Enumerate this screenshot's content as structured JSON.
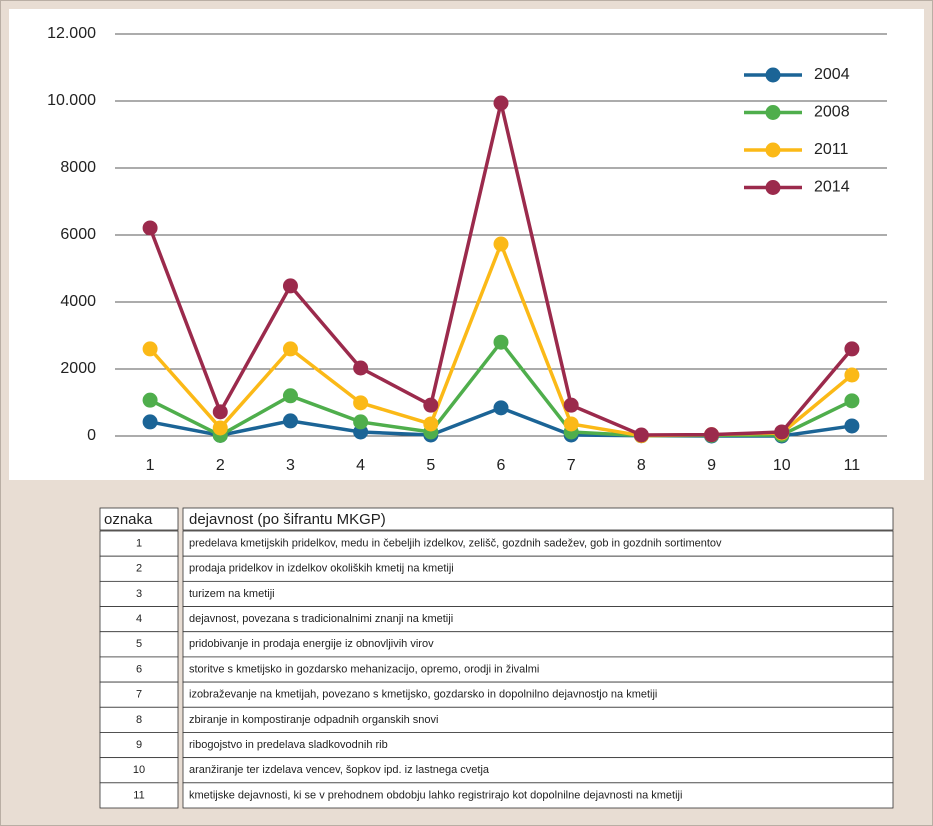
{
  "chart_data": {
    "type": "line",
    "categories": [
      "1",
      "2",
      "3",
      "4",
      "5",
      "6",
      "7",
      "8",
      "9",
      "10",
      "11"
    ],
    "series": [
      {
        "name": "2004",
        "color": "#1b6496",
        "values": [
          420,
          20,
          450,
          120,
          30,
          840,
          30,
          10,
          0,
          0,
          300
        ]
      },
      {
        "name": "2008",
        "color": "#4fae4c",
        "values": [
          1070,
          20,
          1200,
          420,
          120,
          2800,
          120,
          10,
          20,
          30,
          1050
        ]
      },
      {
        "name": "2011",
        "color": "#fbb917",
        "values": [
          2600,
          240,
          2600,
          990,
          360,
          5730,
          360,
          10,
          40,
          90,
          1820
        ]
      },
      {
        "name": "2014",
        "color": "#9b2a4c",
        "values": [
          6210,
          720,
          4480,
          2030,
          920,
          9940,
          920,
          30,
          40,
          120,
          2600
        ]
      }
    ],
    "ylim": [
      0,
      12000
    ],
    "yticks": [
      0,
      2000,
      4000,
      6000,
      8000,
      {
        "value": 10000,
        "label": "10.000"
      },
      {
        "value": 12000,
        "label": "12.000"
      }
    ],
    "grid": true,
    "legend": "upper right"
  },
  "table": {
    "header": [
      "oznaka",
      "dejavnost (po šifrantu MKGP)"
    ],
    "rows": [
      [
        "1",
        "predelava kmetijskih pridelkov, medu in čebeljih izdelkov, zelišč, gozdnih sadežev, gob in gozdnih sortimentov"
      ],
      [
        "2",
        "prodaja pridelkov in izdelkov okoliških kmetij na kmetiji"
      ],
      [
        "3",
        "turizem na kmetiji"
      ],
      [
        "4",
        "dejavnost, povezana s tradicionalnimi znanji na kmetiji"
      ],
      [
        "5",
        "pridobivanje in prodaja energije iz obnovljivih virov"
      ],
      [
        "6",
        "storitve s kmetijsko in gozdarsko mehanizacijo, opremo, orodji in živalmi"
      ],
      [
        "7",
        "izobraževanje na kmetijah, povezano s kmetijsko, gozdarsko in dopolnilno dejavnostjo na kmetiji"
      ],
      [
        "8",
        "zbiranje in kompostiranje odpadnih organskih snovi"
      ],
      [
        "9",
        "ribogojstvo in predelava sladkovodnih rib"
      ],
      [
        "10",
        "aranžiranje ter izdelava vencev, šopkov ipd. iz lastnega cvetja"
      ],
      [
        "11",
        "kmetijske dejavnosti, ki se v prehodnem obdobju lahko registrirajo kot dopolnilne dejavnosti na kmetiji"
      ]
    ]
  }
}
